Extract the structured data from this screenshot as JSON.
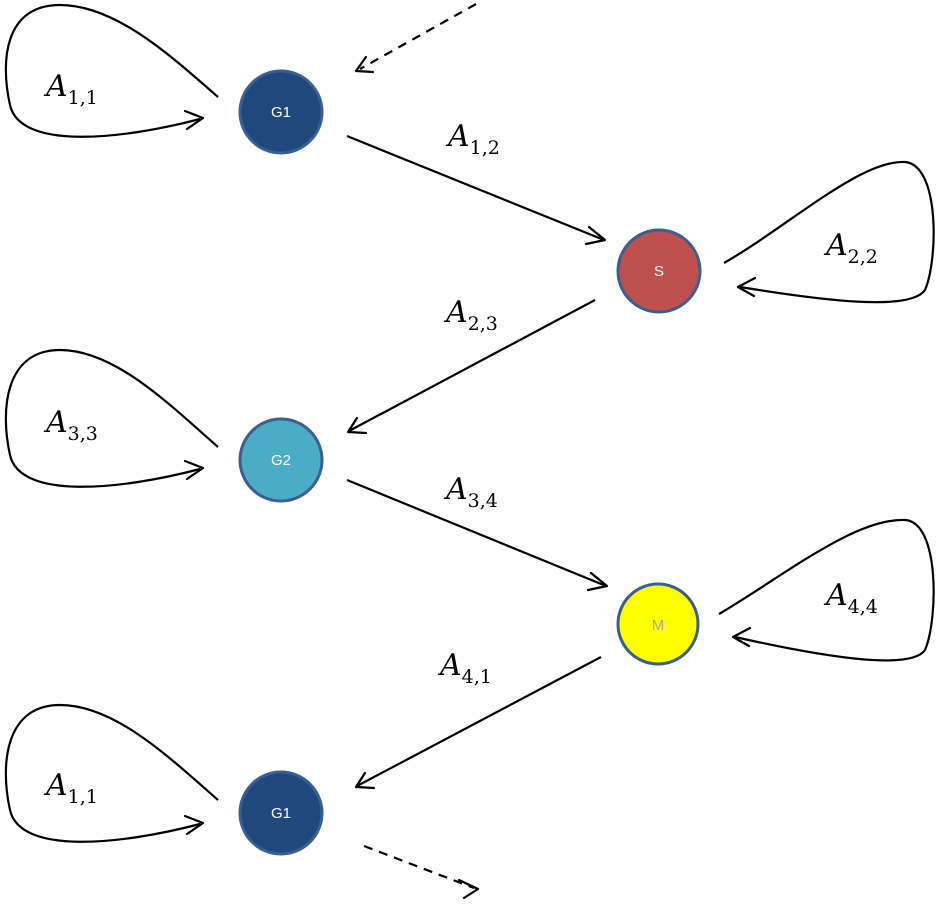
{
  "nodes": [
    {
      "id": "g1-top",
      "label": "G1",
      "fill": "#1f497d",
      "text_color": "#ffffff"
    },
    {
      "id": "s",
      "label": "S",
      "fill": "#c0504d",
      "text_color": "#ffffff"
    },
    {
      "id": "g2",
      "label": "G2",
      "fill": "#4bacc6",
      "text_color": "#ffffff"
    },
    {
      "id": "m",
      "label": "M",
      "fill": "#ffff00",
      "text_color": "#a6a6a6"
    },
    {
      "id": "g1-bottom",
      "label": "G1",
      "fill": "#1f497d",
      "text_color": "#ffffff"
    }
  ],
  "node_border_color": "#3a5f8f",
  "edges": [
    {
      "from": "g1-top",
      "to": "g1-top",
      "base": "A",
      "sub": "1,1",
      "kind": "self-loop"
    },
    {
      "from": "g1-top",
      "to": "s",
      "base": "A",
      "sub": "1,2",
      "kind": "transition"
    },
    {
      "from": "s",
      "to": "s",
      "base": "A",
      "sub": "2,2",
      "kind": "self-loop"
    },
    {
      "from": "s",
      "to": "g2",
      "base": "A",
      "sub": "2,3",
      "kind": "transition"
    },
    {
      "from": "g2",
      "to": "g2",
      "base": "A",
      "sub": "3,3",
      "kind": "self-loop"
    },
    {
      "from": "g2",
      "to": "m",
      "base": "A",
      "sub": "3,4",
      "kind": "transition"
    },
    {
      "from": "m",
      "to": "m",
      "base": "A",
      "sub": "4,4",
      "kind": "self-loop"
    },
    {
      "from": "m",
      "to": "g1-bottom",
      "base": "A",
      "sub": "4,1",
      "kind": "transition"
    },
    {
      "from": "g1-bottom",
      "to": "g1-bottom",
      "base": "A",
      "sub": "1,1",
      "kind": "self-loop"
    }
  ],
  "continuations": [
    {
      "to": "g1-top",
      "style": "dashed",
      "direction": "incoming"
    },
    {
      "from": "g1-bottom",
      "style": "dashed",
      "direction": "outgoing"
    }
  ]
}
